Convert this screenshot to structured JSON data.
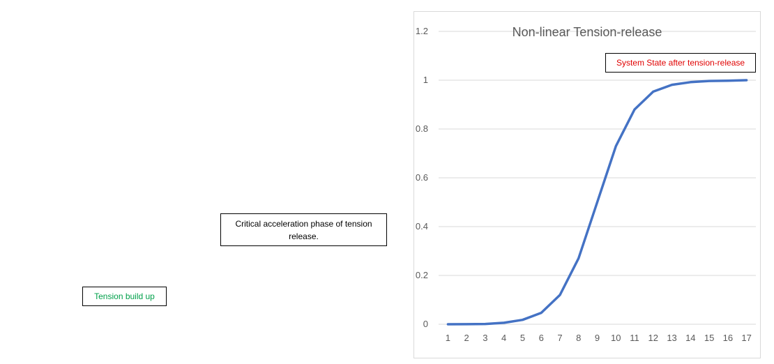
{
  "labels": {
    "tension_build_up": "Tension build up",
    "critical_phase": "Critical acceleration phase of tension release.",
    "system_state": "System State after tension-release"
  },
  "colors": {
    "line": "#4472c4",
    "gridline": "#d9d9d9",
    "axis_text": "#595959",
    "title_text": "#595959",
    "green_label": "#00a04a",
    "red_label": "#e00000"
  },
  "chart_data": {
    "type": "line",
    "title": "Non-linear Tension-release",
    "xlabel": "",
    "ylabel": "",
    "categories": [
      "1",
      "2",
      "3",
      "4",
      "5",
      "6",
      "7",
      "8",
      "9",
      "10",
      "11",
      "12",
      "13",
      "14",
      "15",
      "16",
      "17"
    ],
    "series": [
      {
        "values": [
          0.0,
          0.0003,
          0.001,
          0.006,
          0.018,
          0.047,
          0.12,
          0.27,
          0.5,
          0.73,
          0.88,
          0.953,
          0.981,
          0.992,
          0.997,
          0.998,
          1.0
        ]
      }
    ],
    "ylim": [
      0,
      1.2
    ],
    "yticks": [
      "0",
      "0.2",
      "0.4",
      "0.6",
      "0.8",
      "1",
      "1.2"
    ],
    "grid": true,
    "legend": "none"
  }
}
